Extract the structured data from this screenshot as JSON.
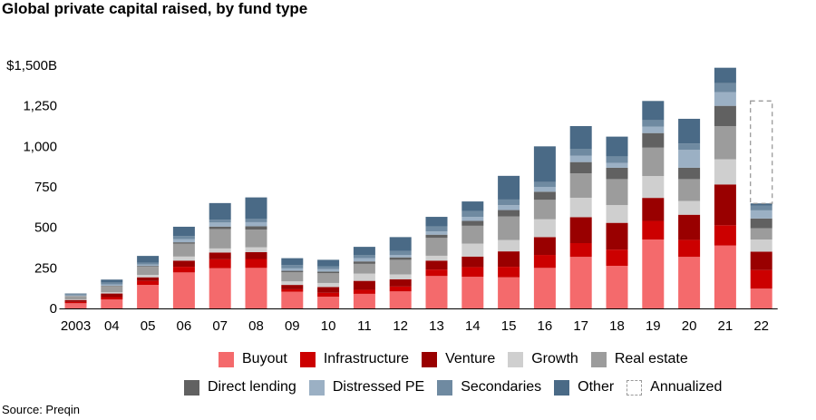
{
  "chart_data": {
    "type": "bar",
    "stacked": true,
    "title": "Global private capital raised, by fund type",
    "categories": [
      "2003",
      "04",
      "05",
      "06",
      "07",
      "08",
      "09",
      "10",
      "11",
      "12",
      "13",
      "14",
      "15",
      "16",
      "17",
      "18",
      "19",
      "20",
      "21",
      "22"
    ],
    "y_tick_labels": [
      "0",
      "250",
      "500",
      "750",
      "1,000",
      "1,250",
      "$1,500B"
    ],
    "y_ticks": [
      0,
      250,
      500,
      750,
      1000,
      1250,
      1500
    ],
    "ylim": [
      0,
      1500
    ],
    "series": [
      {
        "name": "Buyout",
        "color": "#f46a6c",
        "values": [
          32,
          55,
          145,
          222,
          248,
          250,
          103,
          72,
          90,
          105,
          200,
          195,
          192,
          250,
          318,
          263,
          425,
          318,
          388,
          122
        ]
      },
      {
        "name": "Infrastructure",
        "color": "#cc0000",
        "values": [
          8,
          15,
          25,
          35,
          55,
          55,
          15,
          25,
          25,
          30,
          40,
          60,
          65,
          80,
          85,
          100,
          115,
          105,
          125,
          115
        ]
      },
      {
        "name": "Venture",
        "color": "#990000",
        "values": [
          12,
          22,
          22,
          38,
          42,
          42,
          27,
          35,
          55,
          45,
          55,
          65,
          95,
          110,
          160,
          165,
          142,
          155,
          252,
          113
        ]
      },
      {
        "name": "Growth",
        "color": "#cfcfcf",
        "values": [
          3,
          8,
          15,
          25,
          25,
          30,
          22,
          25,
          45,
          30,
          30,
          80,
          70,
          110,
          120,
          110,
          135,
          85,
          155,
          75
        ]
      },
      {
        "name": "Real estate",
        "color": "#9c9c9c",
        "values": [
          22,
          38,
          50,
          80,
          120,
          110,
          57,
          60,
          60,
          90,
          110,
          110,
          145,
          120,
          150,
          160,
          175,
          135,
          205,
          70
        ]
      },
      {
        "name": "Direct lending",
        "color": "#616161",
        "values": [
          0,
          2,
          5,
          8,
          15,
          20,
          8,
          10,
          15,
          15,
          20,
          30,
          40,
          50,
          70,
          70,
          90,
          70,
          125,
          60
        ]
      },
      {
        "name": "Distressed PE",
        "color": "#9bb0c4",
        "values": [
          3,
          8,
          8,
          20,
          25,
          25,
          15,
          15,
          20,
          15,
          20,
          25,
          30,
          30,
          40,
          30,
          40,
          110,
          85,
          50
        ]
      },
      {
        "name": "Secondaries",
        "color": "#6f8aa1",
        "values": [
          8,
          12,
          12,
          18,
          18,
          20,
          20,
          18,
          20,
          25,
          30,
          35,
          35,
          30,
          40,
          40,
          40,
          40,
          55,
          30
        ]
      },
      {
        "name": "Other",
        "color": "#4a6a86",
        "values": [
          4,
          18,
          42,
          58,
          102,
          133,
          43,
          40,
          50,
          85,
          60,
          60,
          146,
          220,
          142,
          122,
          118,
          152,
          95,
          13
        ]
      }
    ],
    "annualized": {
      "name": "Annualized",
      "category": "22",
      "value": 1280
    },
    "legend_placement": "bottom",
    "grid": false
  },
  "source": "Source: Preqin"
}
